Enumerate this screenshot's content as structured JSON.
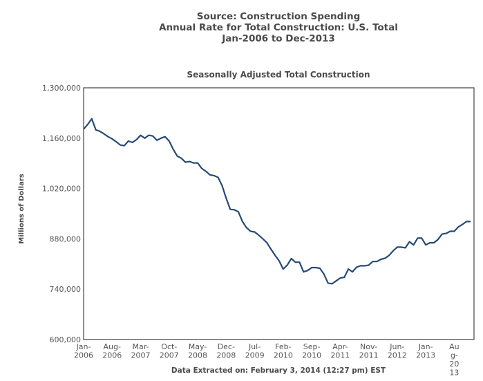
{
  "header": {
    "line1": "Source: Construction Spending",
    "line2": "Annual Rate for Total Construction: U.S. Total",
    "line3": "Jan-2006 to Dec-2013"
  },
  "footer": {
    "text": "Data Extracted on: February 3, 2014 (12:27 pm) EST"
  },
  "colors": {
    "line": "#254a75",
    "axis": "#444444",
    "text": "#4a4a4a"
  },
  "chart_data": {
    "type": "line",
    "title": "Seasonally Adjusted Total Construction",
    "xlabel": "",
    "ylabel": "Millions of Dollars",
    "ylim": [
      600000,
      1300000
    ],
    "yticks": [
      600000,
      740000,
      880000,
      1020000,
      1160000,
      1300000
    ],
    "ytick_labels": [
      "600,000",
      "740,000",
      "880,000",
      "1,020,000",
      "1,160,000",
      "1,300,000"
    ],
    "x_start": "Jan-2006",
    "x_end": "Dec-2013",
    "x_tick_labels": [
      {
        "month_index": 0,
        "lines": [
          "Jan-",
          "2006"
        ]
      },
      {
        "month_index": 7,
        "lines": [
          "Aug-",
          "2006"
        ]
      },
      {
        "month_index": 14,
        "lines": [
          "Mar-",
          "2007"
        ]
      },
      {
        "month_index": 21,
        "lines": [
          "Oct-",
          "2007"
        ]
      },
      {
        "month_index": 28,
        "lines": [
          "May-",
          "2008"
        ]
      },
      {
        "month_index": 35,
        "lines": [
          "Dec-",
          "2008"
        ]
      },
      {
        "month_index": 42,
        "lines": [
          "Jul-",
          "2009"
        ]
      },
      {
        "month_index": 49,
        "lines": [
          "Feb-",
          "2010"
        ]
      },
      {
        "month_index": 56,
        "lines": [
          "Sep-",
          "2010"
        ]
      },
      {
        "month_index": 63,
        "lines": [
          "Apr-",
          "2011"
        ]
      },
      {
        "month_index": 70,
        "lines": [
          "Nov-",
          "2011"
        ]
      },
      {
        "month_index": 77,
        "lines": [
          "Jun-",
          "2012"
        ]
      },
      {
        "month_index": 84,
        "lines": [
          "Jan-",
          "2013"
        ]
      },
      {
        "month_index": 91,
        "lines": [
          "Au",
          "g-",
          "20",
          "13"
        ]
      }
    ],
    "grid": false,
    "legend": "none",
    "series": [
      {
        "name": "Seasonally Adjusted Total Construction",
        "values": [
          1185000,
          1198000,
          1214000,
          1183000,
          1179000,
          1172000,
          1164000,
          1158000,
          1150000,
          1141000,
          1139000,
          1152000,
          1148000,
          1156000,
          1168000,
          1160000,
          1168000,
          1166000,
          1154000,
          1160000,
          1164000,
          1152000,
          1129000,
          1110000,
          1104000,
          1093000,
          1095000,
          1091000,
          1091000,
          1076000,
          1068000,
          1058000,
          1056000,
          1051000,
          1028000,
          993000,
          962000,
          961000,
          955000,
          928000,
          911000,
          901000,
          899000,
          890000,
          880000,
          869000,
          851000,
          834000,
          819000,
          796000,
          807000,
          825000,
          815000,
          815000,
          788000,
          792000,
          800000,
          800000,
          798000,
          782000,
          757000,
          755000,
          763000,
          771000,
          773000,
          796000,
          788000,
          801000,
          805000,
          805000,
          807000,
          817000,
          817000,
          823000,
          826000,
          834000,
          847000,
          857000,
          857000,
          855000,
          872000,
          863000,
          882000,
          882000,
          863000,
          869000,
          869000,
          878000,
          893000,
          895000,
          901000,
          901000,
          913000,
          920000,
          928000,
          928000
        ]
      }
    ]
  }
}
